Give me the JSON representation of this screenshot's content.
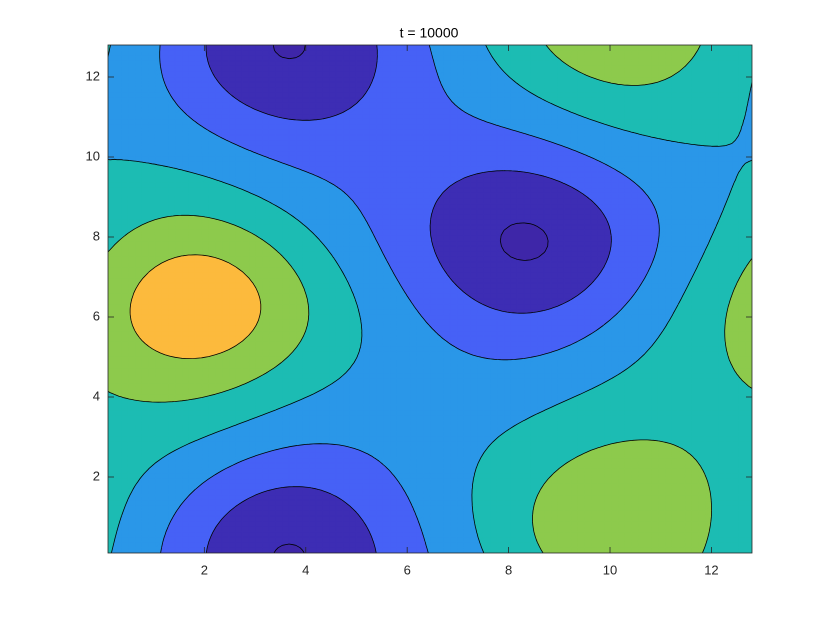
{
  "chart_data": {
    "type": "contour",
    "title": "t = 10000",
    "xlim": [
      0.1,
      12.8
    ],
    "ylim": [
      0.1,
      12.8
    ],
    "xticks": [
      2,
      4,
      6,
      8,
      10,
      12
    ],
    "yticks": [
      2,
      4,
      6,
      8,
      10,
      12
    ],
    "period": 12.8,
    "base": -0.4,
    "peaks": [
      {
        "x": 2.0,
        "y": 6.4,
        "amplitude": 3.6,
        "spread": 2.0
      },
      {
        "x": 10.0,
        "y": 0.6,
        "amplitude": 2.9,
        "spread": 2.2
      },
      {
        "x": 8.5,
        "y": 7.8,
        "amplitude": -3.4,
        "spread": 2.0
      },
      {
        "x": 3.5,
        "y": 0.1,
        "amplitude": -3.4,
        "spread": 2.0
      }
    ],
    "levels": [
      -3,
      -2,
      -1,
      0,
      1,
      2,
      3
    ],
    "colors": [
      "#3e26a8",
      "#3d2db4",
      "#4661f6",
      "#2a97e8",
      "#1cbcb3",
      "#8dca4c",
      "#fcba3d",
      "#f6f51a"
    ],
    "line_color": "#000000"
  }
}
